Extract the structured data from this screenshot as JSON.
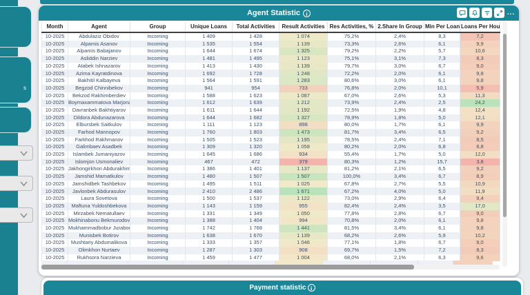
{
  "colors": {
    "accent_teal": "#1a8799",
    "row_alt": "#edf0f5",
    "scale_low": "#F4B3AC",
    "scale_mid": "#F2E9C9",
    "scale_high": "#BBE3BB"
  },
  "sidebar": {
    "box_label": "s",
    "dropdown_count": 3
  },
  "agent_panel": {
    "title": "Agent Statistic",
    "info_glyph": "i",
    "toolbar": {
      "more_label": "..."
    },
    "table": {
      "columns": [
        "Month",
        "Agent",
        "Group",
        "Unique Loans",
        "Total Activities",
        "Result Activities",
        "Res Activities, %",
        "2.Share In Group",
        "Min Per Loan",
        "Loans Per Hour"
      ],
      "conditional": {
        "result_activities": {
          "col": 5,
          "min": 379,
          "mid": 1025,
          "max": 1671
        },
        "loans_per_hour": {
          "col": 9,
          "min": 3.8,
          "mid": 14.0,
          "max": 24.2
        }
      },
      "rows": [
        [
          "10-2025",
          "Abdulaziz Obidov",
          "Incoming",
          "1 409",
          "1 428",
          "1 074",
          "75,2%",
          "2,4%",
          "8,3",
          "7,2"
        ],
        [
          "10-2025",
          "Alpamis Asanov",
          "Incoming",
          "1 535",
          "1 554",
          "1 139",
          "73,3%",
          "2,6%",
          "6,1",
          "9,9"
        ],
        [
          "10-2025",
          "Alpamis Babajanov",
          "Incoming",
          "1 644",
          "1 674",
          "1 325",
          "79,2%",
          "2,2%",
          "5,7",
          "10,6"
        ],
        [
          "10-2025",
          "Asliddin Narziev",
          "Incoming",
          "1 481",
          "1 495",
          "1 123",
          "75,1%",
          "3,1%",
          "7,3",
          "8,3"
        ],
        [
          "10-2025",
          "Atabek Ishnazarov",
          "Incoming",
          "1 413",
          "1 430",
          "1 139",
          "79,7%",
          "3,0%",
          "6,7",
          "9,0"
        ],
        [
          "10-2025",
          "Azima Kayratdinova",
          "Incoming",
          "1 692",
          "1 728",
          "1 248",
          "72,2%",
          "2,0%",
          "6,1",
          "9,8"
        ],
        [
          "10-2025",
          "Bakhitil Kalbayeva",
          "Incoming",
          "1 564",
          "1 591",
          "1 283",
          "80,6%",
          "3,0%",
          "6,1",
          "9,8"
        ],
        [
          "10-2025",
          "Begzod Chinnibekov",
          "Incoming",
          "941",
          "954",
          "733",
          "76,8%",
          "2,0%",
          "10,1",
          "5,9"
        ],
        [
          "10-2025",
          "Bekzod Rakhimberdiev",
          "Incoming",
          "1 588",
          "1 623",
          "1 087",
          "67,0%",
          "2,6%",
          "5,3",
          "11,3"
        ],
        [
          "10-2025",
          "Boymaxammatova Marjona",
          "Incoming",
          "1 612",
          "1 639",
          "1 212",
          "73,9%",
          "2,4%",
          "2,5",
          "24,2"
        ],
        [
          "10-2025",
          "Davranbek Bakhtiyarov",
          "Incoming",
          "1 611",
          "1 644",
          "1 192",
          "72,5%",
          "1,9%",
          "4,8",
          "12,4"
        ],
        [
          "10-2025",
          "Dildora Abdunazarova",
          "Incoming",
          "1 644",
          "1 682",
          "1 327",
          "78,9%",
          "1,8%",
          "5,0",
          "12,1"
        ],
        [
          "10-2025",
          "Elbursbek Saitkulov",
          "Incoming",
          "1 111",
          "1 123",
          "898",
          "80,0%",
          "1,7%",
          "6,1",
          "9,9"
        ],
        [
          "10-2025",
          "Farhod Mannopov",
          "Incoming",
          "1 760",
          "1 803",
          "1 473",
          "81,7%",
          "3,4%",
          "6,5",
          "9,2"
        ],
        [
          "10-2025",
          "Farkhod Rakhmanov",
          "Incoming",
          "1 505",
          "1 523",
          "1 195",
          "78,5%",
          "2,4%",
          "7,1",
          "8,5"
        ],
        [
          "10-2025",
          "Galimbaev Asadbek",
          "Incoming",
          "1 309",
          "1 320",
          "1 058",
          "80,2%",
          "2,0%",
          "6,8",
          "8,8"
        ],
        [
          "10-2025",
          "Islambek Jumaniyazov",
          "Incoming",
          "1 645",
          "1 686",
          "934",
          "55,4%",
          "1,7%",
          "5,0",
          "12,0"
        ],
        [
          "10-2025",
          "Islomjon Usmonaliev",
          "Incoming",
          "467",
          "472",
          "379",
          "80,3%",
          "1,2%",
          "15,7",
          "3,8"
        ],
        [
          "10-2025",
          "Jakhongirkhon Abdurakhimov",
          "Incoming",
          "1 386",
          "1 401",
          "1 137",
          "81,2%",
          "2,1%",
          "6,5",
          "9,2"
        ],
        [
          "10-2025",
          "Jamshid Mamatkulov",
          "Incoming",
          "1 480",
          "1 507",
          "1 507",
          "100,0%",
          "3,4%",
          "6,7",
          "8,9"
        ],
        [
          "10-2025",
          "Jamshidbek Tashbekov",
          "Incoming",
          "1 495",
          "1 511",
          "1 025",
          "67,8%",
          "2,7%",
          "5,5",
          "10,9"
        ],
        [
          "10-2025",
          "Javlonbek Abdurasulov",
          "Incoming",
          "2 410",
          "2 486",
          "1 671",
          "67,2%",
          "4,0%",
          "5,0",
          "11,9"
        ],
        [
          "10-2025",
          "Laura Sovetova",
          "Incoming",
          "1 500",
          "1 537",
          "1 122",
          "73,0%",
          "2,9%",
          "6,4",
          "9,4"
        ],
        [
          "10-2025",
          "Maftuna Yuldoshbekova",
          "Incoming",
          "1 143",
          "1 159",
          "955",
          "82,4%",
          "2,4%",
          "3,5",
          "17,0"
        ],
        [
          "10-2025",
          "Mirzabek Nematullaev",
          "Incoming",
          "1 331",
          "1 349",
          "1 050",
          "77,8%",
          "2,8%",
          "6,7",
          "9,0"
        ],
        [
          "10-2025",
          "Mokhinabonu Bekmurodova",
          "Incoming",
          "1 388",
          "1 404",
          "994",
          "70,8%",
          "2,0%",
          "6,1",
          "9,8"
        ],
        [
          "10-2025",
          "Mukhammadbobur Juraboev",
          "Incoming",
          "1 742",
          "1 768",
          "1 441",
          "81,5%",
          "3,4%",
          "6,1",
          "9,8"
        ],
        [
          "10-2025",
          "Munisbek Botirov",
          "Incoming",
          "1 638",
          "1 670",
          "1 139",
          "68,2%",
          "2,6%",
          "5,9",
          "10,2"
        ],
        [
          "10-2025",
          "Mushtariy Abdumalikova",
          "Incoming",
          "1 333",
          "1 357",
          "1 046",
          "77,1%",
          "1,8%",
          "6,7",
          "9,0"
        ],
        [
          "10-2025",
          "Olimkhon Nurtaev",
          "Incoming",
          "1 287",
          "1 303",
          "908",
          "69,7%",
          "1,5%",
          "7,2",
          "8,3"
        ],
        [
          "10-2025",
          "Rukhsora Narzieva",
          "Incoming",
          "1 459",
          "1 477",
          "1 004",
          "68,0%",
          "2,1%",
          "6,3",
          "9,6"
        ]
      ]
    }
  },
  "payment_panel": {
    "title": "Payment statistic",
    "info_glyph": "i"
  }
}
